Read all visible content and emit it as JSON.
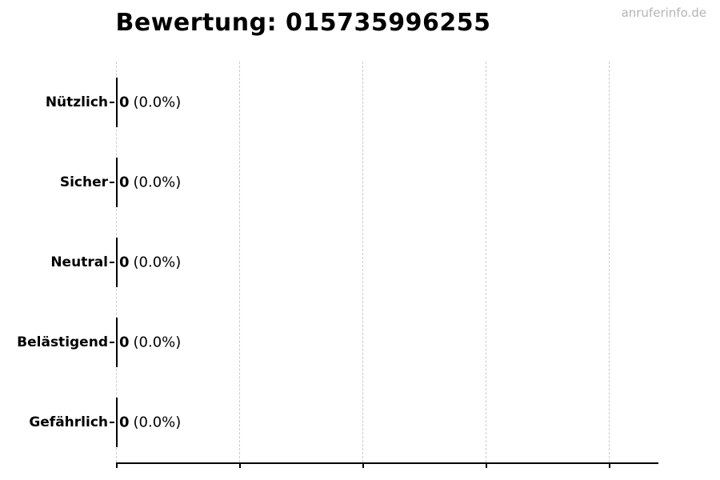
{
  "watermark": {
    "text": "anruferinfo.de"
  },
  "chart_data": {
    "type": "bar",
    "orientation": "horizontal",
    "title": "Bewertung: 015735996255",
    "categories": [
      "Nützlich",
      "Sicher",
      "Neutral",
      "Belästigend",
      "Gefährlich"
    ],
    "values": [
      0,
      0,
      0,
      0,
      0
    ],
    "percentages": [
      0.0,
      0.0,
      0.0,
      0.0,
      0.0
    ],
    "value_labels": [
      "0",
      "0",
      "0",
      "0",
      "0"
    ],
    "pct_labels": [
      "(0.0%)",
      "(0.0%)",
      "(0.0%)",
      "(0.0%)",
      "(0.0%)"
    ],
    "xlabel": "",
    "ylabel": "",
    "x_axis": {
      "min": 0,
      "max": 0.22,
      "ticks": [
        0,
        0.05,
        0.1,
        0.15,
        0.2
      ],
      "tick_labels_visible": false
    },
    "grid": {
      "vertical_dashed": true,
      "horizontal": false
    },
    "legend": "none",
    "bar_edge_color": "#000000"
  },
  "colors": {
    "background": "#ffffff",
    "text": "#000000",
    "gridline": "#cbcbcb",
    "axis": "#000000",
    "watermark": "#b4b4b4"
  }
}
